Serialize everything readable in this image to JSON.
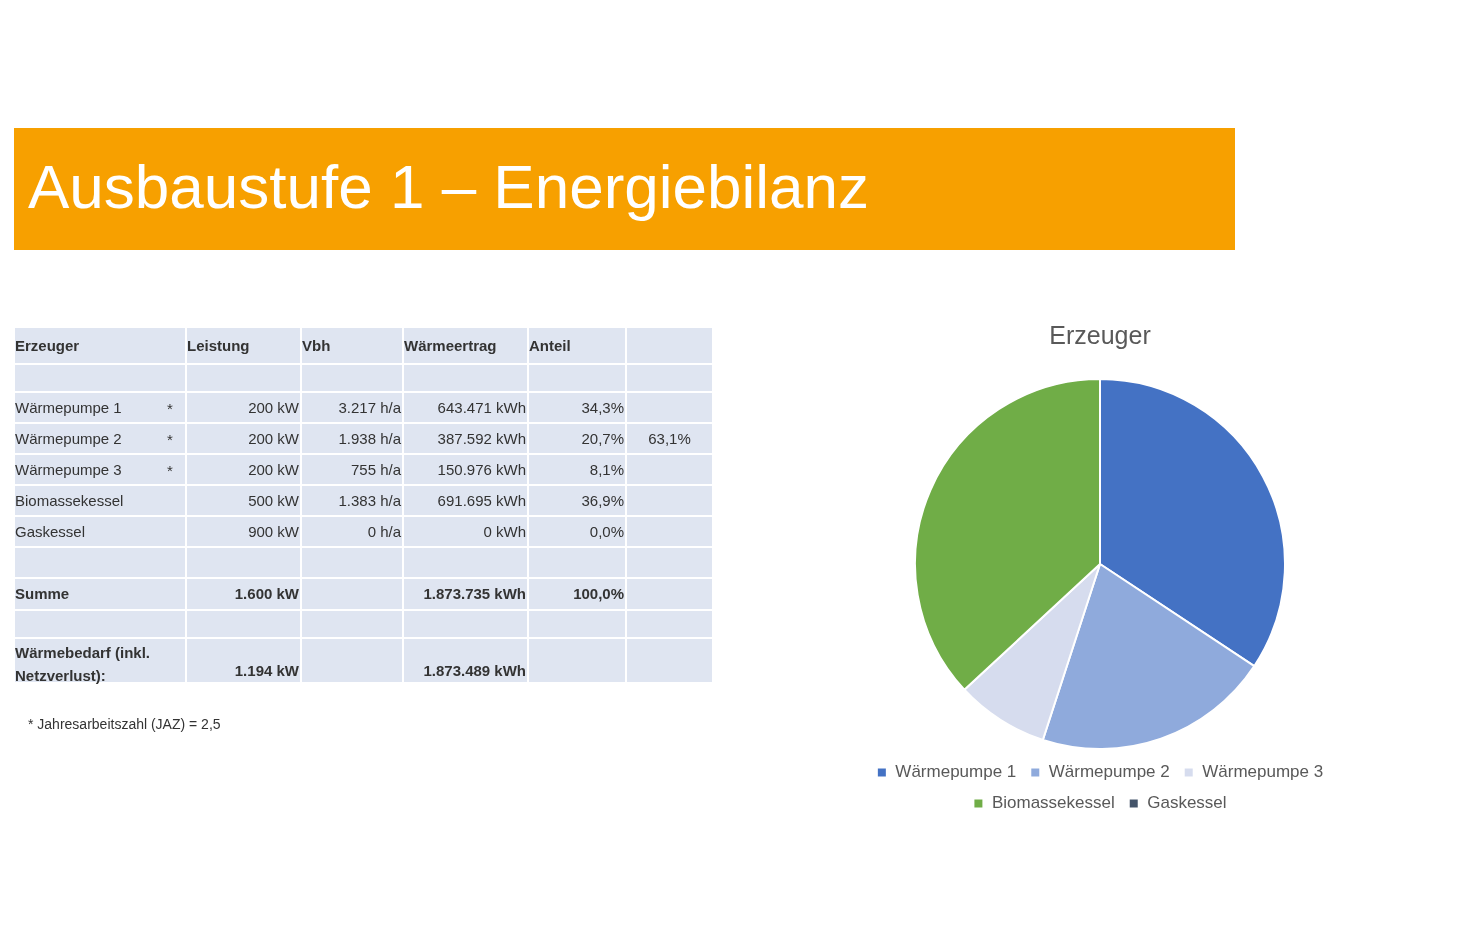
{
  "chart_data": {
    "type": "pie",
    "title": "Ausbaustufe 1 – Energiebilanz",
    "subtitle": "Erzeuger",
    "categories": [
      "Wärmepumpe 1",
      "Wärmepumpe 2",
      "Wärmepumpe 3",
      "Biomassekessel",
      "Gaskessel"
    ],
    "values": [
      34.3,
      20.7,
      8.1,
      36.9,
      0.0
    ],
    "colors": [
      "#4472c4",
      "#8faadc",
      "#d6dcee",
      "#70ad47",
      "#44546a"
    ],
    "legend": "bottom",
    "annotations": [
      "Erzeuger",
      "Leistung",
      "Vbh",
      "Wärmeertrag",
      "Anteil",
      "Wärmepumpe 1",
      "*",
      "200 kW",
      "3.217 h/a",
      "643.471 kWh",
      "34,3%",
      "Wärmepumpe 2",
      "*",
      "200 kW",
      "1.938 h/a",
      "387.592 kWh",
      "20,7%",
      "63,1%",
      "Wärmepumpe 3",
      "*",
      "200 kW",
      "755 h/a",
      "150.976 kWh",
      "8,1%",
      "Biomassekessel",
      "500 kW",
      "1.383 h/a",
      "691.695 kWh",
      "36,9%",
      "Gaskessel",
      "900 kW",
      "0 h/a",
      "0 kWh",
      "0,0%",
      "Summe",
      "1.600 kW",
      "1.873.735 kWh",
      "100,0%",
      "Wärmebedarf (inkl. Netzverlust):",
      "1.194 kW",
      "1.873.489 kWh",
      "* Jahresarbeitszahl (JAZ) = 2,5"
    ]
  }
}
